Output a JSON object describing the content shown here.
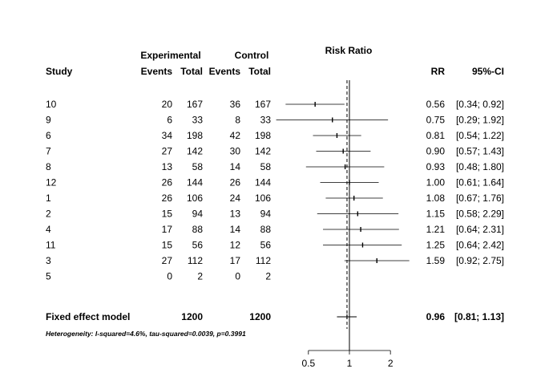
{
  "chart_data": {
    "type": "forest",
    "title": "Risk Ratio",
    "headers": {
      "group_experimental": "Experimental",
      "group_control": "Control",
      "study": "Study",
      "events": "Events",
      "total": "Total",
      "rr": "RR",
      "ci": "95%-CI"
    },
    "studies": [
      {
        "study": "10",
        "exp_events": "20",
        "exp_total": "167",
        "ctrl_events": "36",
        "ctrl_total": "167",
        "rr_text": "0.56",
        "ci_text": "[0.34; 0.92]",
        "rr": 0.56,
        "lo": 0.34,
        "hi": 0.92
      },
      {
        "study": "9",
        "exp_events": "6",
        "exp_total": "33",
        "ctrl_events": "8",
        "ctrl_total": "33",
        "rr_text": "0.75",
        "ci_text": "[0.29; 1.92]",
        "rr": 0.75,
        "lo": 0.29,
        "hi": 1.92
      },
      {
        "study": "6",
        "exp_events": "34",
        "exp_total": "198",
        "ctrl_events": "42",
        "ctrl_total": "198",
        "rr_text": "0.81",
        "ci_text": "[0.54; 1.22]",
        "rr": 0.81,
        "lo": 0.54,
        "hi": 1.22
      },
      {
        "study": "7",
        "exp_events": "27",
        "exp_total": "142",
        "ctrl_events": "30",
        "ctrl_total": "142",
        "rr_text": "0.90",
        "ci_text": "[0.57; 1.43]",
        "rr": 0.9,
        "lo": 0.57,
        "hi": 1.43
      },
      {
        "study": "8",
        "exp_events": "13",
        "exp_total": "58",
        "ctrl_events": "14",
        "ctrl_total": "58",
        "rr_text": "0.93",
        "ci_text": "[0.48; 1.80]",
        "rr": 0.93,
        "lo": 0.48,
        "hi": 1.8
      },
      {
        "study": "12",
        "exp_events": "26",
        "exp_total": "144",
        "ctrl_events": "26",
        "ctrl_total": "144",
        "rr_text": "1.00",
        "ci_text": "[0.61; 1.64]",
        "rr": 1.0,
        "lo": 0.61,
        "hi": 1.64
      },
      {
        "study": "1",
        "exp_events": "26",
        "exp_total": "106",
        "ctrl_events": "24",
        "ctrl_total": "106",
        "rr_text": "1.08",
        "ci_text": "[0.67; 1.76]",
        "rr": 1.08,
        "lo": 0.67,
        "hi": 1.76
      },
      {
        "study": "2",
        "exp_events": "15",
        "exp_total": "94",
        "ctrl_events": "13",
        "ctrl_total": "94",
        "rr_text": "1.15",
        "ci_text": "[0.58; 2.29]",
        "rr": 1.15,
        "lo": 0.58,
        "hi": 2.29
      },
      {
        "study": "4",
        "exp_events": "17",
        "exp_total": "88",
        "ctrl_events": "14",
        "ctrl_total": "88",
        "rr_text": "1.21",
        "ci_text": "[0.64; 2.31]",
        "rr": 1.21,
        "lo": 0.64,
        "hi": 2.31
      },
      {
        "study": "11",
        "exp_events": "15",
        "exp_total": "56",
        "ctrl_events": "12",
        "ctrl_total": "56",
        "rr_text": "1.25",
        "ci_text": "[0.64; 2.42]",
        "rr": 1.25,
        "lo": 0.64,
        "hi": 2.42
      },
      {
        "study": "3",
        "exp_events": "27",
        "exp_total": "112",
        "ctrl_events": "17",
        "ctrl_total": "112",
        "rr_text": "1.59",
        "ci_text": "[0.92; 2.75]",
        "rr": 1.59,
        "lo": 0.92,
        "hi": 2.75
      },
      {
        "study": "5",
        "exp_events": "0",
        "exp_total": "2",
        "ctrl_events": "0",
        "ctrl_total": "2",
        "rr_text": "",
        "ci_text": "",
        "rr": null,
        "lo": null,
        "hi": null
      }
    ],
    "pooled": {
      "label": "Fixed effect model",
      "exp_total": "1200",
      "ctrl_total": "1200",
      "rr_text": "0.96",
      "ci_text": "[0.81; 1.13]",
      "rr": 0.96,
      "lo": 0.81,
      "hi": 1.13
    },
    "heterogeneity": "Heterogeneity: I-squared=4.6%, tau-squared=0.0039, p=0.3991",
    "x_axis": {
      "scale": "log",
      "ticks": [
        0.5,
        1,
        2
      ],
      "tick_labels": [
        "0.5",
        "1",
        "2"
      ],
      "reference_line": 1,
      "pooled_line": 0.96
    }
  }
}
